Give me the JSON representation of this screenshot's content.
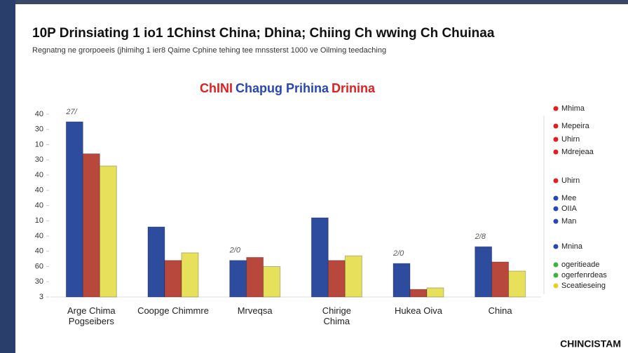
{
  "header": {
    "title": "10P Drinsiating 1 io1 1Chinst China; Dhina; Chiing Ch wwing Ch Chuinaa",
    "subtitle": "Regnatng ne grorpoeeis (jhimihg 1 ier8 Qaime Cphine tehing tee mnssterst 1000 ve Oilming teedaching"
  },
  "chart_data": {
    "type": "bar",
    "title": [
      {
        "text": "ChINI",
        "color": "#e02020"
      },
      {
        "text": "Chapug Prihina",
        "color": "#2846b4"
      },
      {
        "text": "Drinina",
        "color": "#e02020"
      }
    ],
    "categories": [
      "Arge Chima\nPogseibers",
      "Coopge Chimmre",
      "Mrveqsa",
      "Chirige\nChima",
      "Hukea Oiva",
      "China"
    ],
    "series": [
      {
        "color": "#2d4c9e",
        "values": [
          11.5,
          4.6,
          2.4,
          5.2,
          2.2,
          3.3
        ]
      },
      {
        "color": "#b8483c",
        "values": [
          9.4,
          2.4,
          2.6,
          2.4,
          0.5,
          2.3
        ]
      },
      {
        "color": "#e6e05a",
        "values": [
          8.6,
          2.9,
          2.0,
          2.7,
          0.6,
          1.7
        ]
      }
    ],
    "ylim": [
      0,
      12
    ],
    "yticks": [
      {
        "value": 0,
        "label": "3"
      },
      {
        "value": 1,
        "label": "30"
      },
      {
        "value": 2,
        "label": "60"
      },
      {
        "value": 3,
        "label": "40"
      },
      {
        "value": 4,
        "label": "40"
      },
      {
        "value": 5,
        "label": "10"
      },
      {
        "value": 6,
        "label": "40"
      },
      {
        "value": 7,
        "label": "40"
      },
      {
        "value": 8,
        "label": "40"
      },
      {
        "value": 9,
        "label": "30"
      },
      {
        "value": 10,
        "label": "10"
      },
      {
        "value": 11,
        "label": "30"
      },
      {
        "value": 12,
        "label": "40"
      }
    ],
    "annotations": [
      "27/",
      "2/0",
      "2/0",
      "2/8"
    ],
    "legend": [
      {
        "label": "Mhima",
        "color": "#e02020"
      },
      {
        "label": "Mepeira",
        "color": "#e02020"
      },
      {
        "label": "Uhirn",
        "color": "#e02020"
      },
      {
        "label": "Mdrejeaa",
        "color": "#e02020"
      },
      {
        "label": "Uhirn",
        "color": "#e02020"
      },
      {
        "label": "Mee",
        "color": "#2846b4"
      },
      {
        "label": "OIIA",
        "color": "#2846b4"
      },
      {
        "label": "Man",
        "color": "#2846b4"
      },
      {
        "label": "Mnina",
        "color": "#2846b4"
      },
      {
        "label": "ogeritieade",
        "color": "#3cb43c"
      },
      {
        "label": "ogerfenrdeas",
        "color": "#3cb43c"
      },
      {
        "label": "Sceatieseing",
        "color": "#e6d020"
      }
    ]
  },
  "footer": "CHINCISTAM"
}
